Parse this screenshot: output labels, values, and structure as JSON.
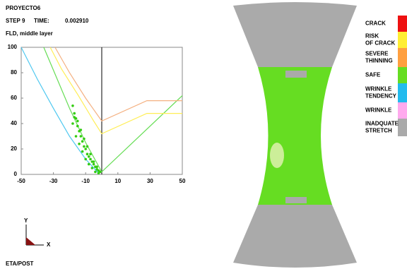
{
  "header": {
    "project": "PROYECTO6",
    "step": "STEP 9",
    "time_label": "TIME:",
    "time": "0.002910",
    "subtitle": "FLD, middle layer"
  },
  "chart_data": {
    "type": "line",
    "xlim": [
      -50,
      50
    ],
    "xticks": [
      -50,
      -30,
      -10,
      10,
      30,
      50
    ],
    "ylim": [
      0,
      100
    ],
    "yticks": [
      0,
      20,
      40,
      60,
      80,
      100
    ],
    "series": [
      {
        "color": "#4fc8f0",
        "x": [
          -50,
          -40,
          -30,
          -20,
          -10,
          -2
        ],
        "values": [
          100,
          75,
          52,
          30,
          12,
          1
        ]
      },
      {
        "color": "#66dd55",
        "x": [
          -36,
          -30,
          -20,
          -10,
          0,
          50
        ],
        "values": [
          100,
          82,
          52,
          25,
          2,
          62
        ]
      },
      {
        "color": "#ffee55",
        "x": [
          -32,
          -25,
          -15,
          -5,
          0,
          28,
          50
        ],
        "values": [
          100,
          83,
          63,
          42,
          32,
          48,
          48
        ]
      },
      {
        "color": "#f4b080",
        "x": [
          -29,
          -20,
          -10,
          0,
          28,
          50
        ],
        "values": [
          100,
          80,
          60,
          42,
          58,
          58
        ]
      }
    ],
    "points": {
      "color": "#33cc11",
      "x": [
        -18,
        -17,
        -16,
        -18,
        -15,
        -14,
        -16,
        -13,
        -12,
        -14,
        -11,
        -10,
        -12,
        -9,
        -8,
        -10,
        -7,
        -6,
        -8,
        -5,
        -4,
        -6,
        -3,
        -2,
        -4,
        -1,
        -2,
        -17,
        -15,
        -11,
        -7,
        -3,
        -13,
        -9,
        -5
      ],
      "values": [
        54,
        48,
        44,
        40,
        38,
        34,
        30,
        30,
        26,
        24,
        22,
        20,
        18,
        16,
        14,
        12,
        12,
        10,
        8,
        8,
        6,
        5,
        4,
        3,
        2,
        2,
        1,
        45,
        42,
        28,
        16,
        6,
        35,
        22,
        10
      ]
    }
  },
  "legend": [
    {
      "label": [
        "CRACK"
      ],
      "color": "#ee1111"
    },
    {
      "label": [
        "RISK",
        "OF CRACK"
      ],
      "color": "#ffee33"
    },
    {
      "label": [
        "SEVERE",
        "THINNING"
      ],
      "color": "#ffa040"
    },
    {
      "label": [
        "SAFE"
      ],
      "color": "#66dd22"
    },
    {
      "label": [
        "WRINKLE",
        "TENDENCY"
      ],
      "color": "#22bbee"
    },
    {
      "label": [
        "WRINKLE"
      ],
      "color": "#ffaaee"
    },
    {
      "label": [
        "INADQUATE",
        "STRETCH"
      ],
      "color": "#aaaaaa"
    }
  ],
  "triad": {
    "y": "Y",
    "x": "X"
  },
  "footer": "ETA/POST"
}
